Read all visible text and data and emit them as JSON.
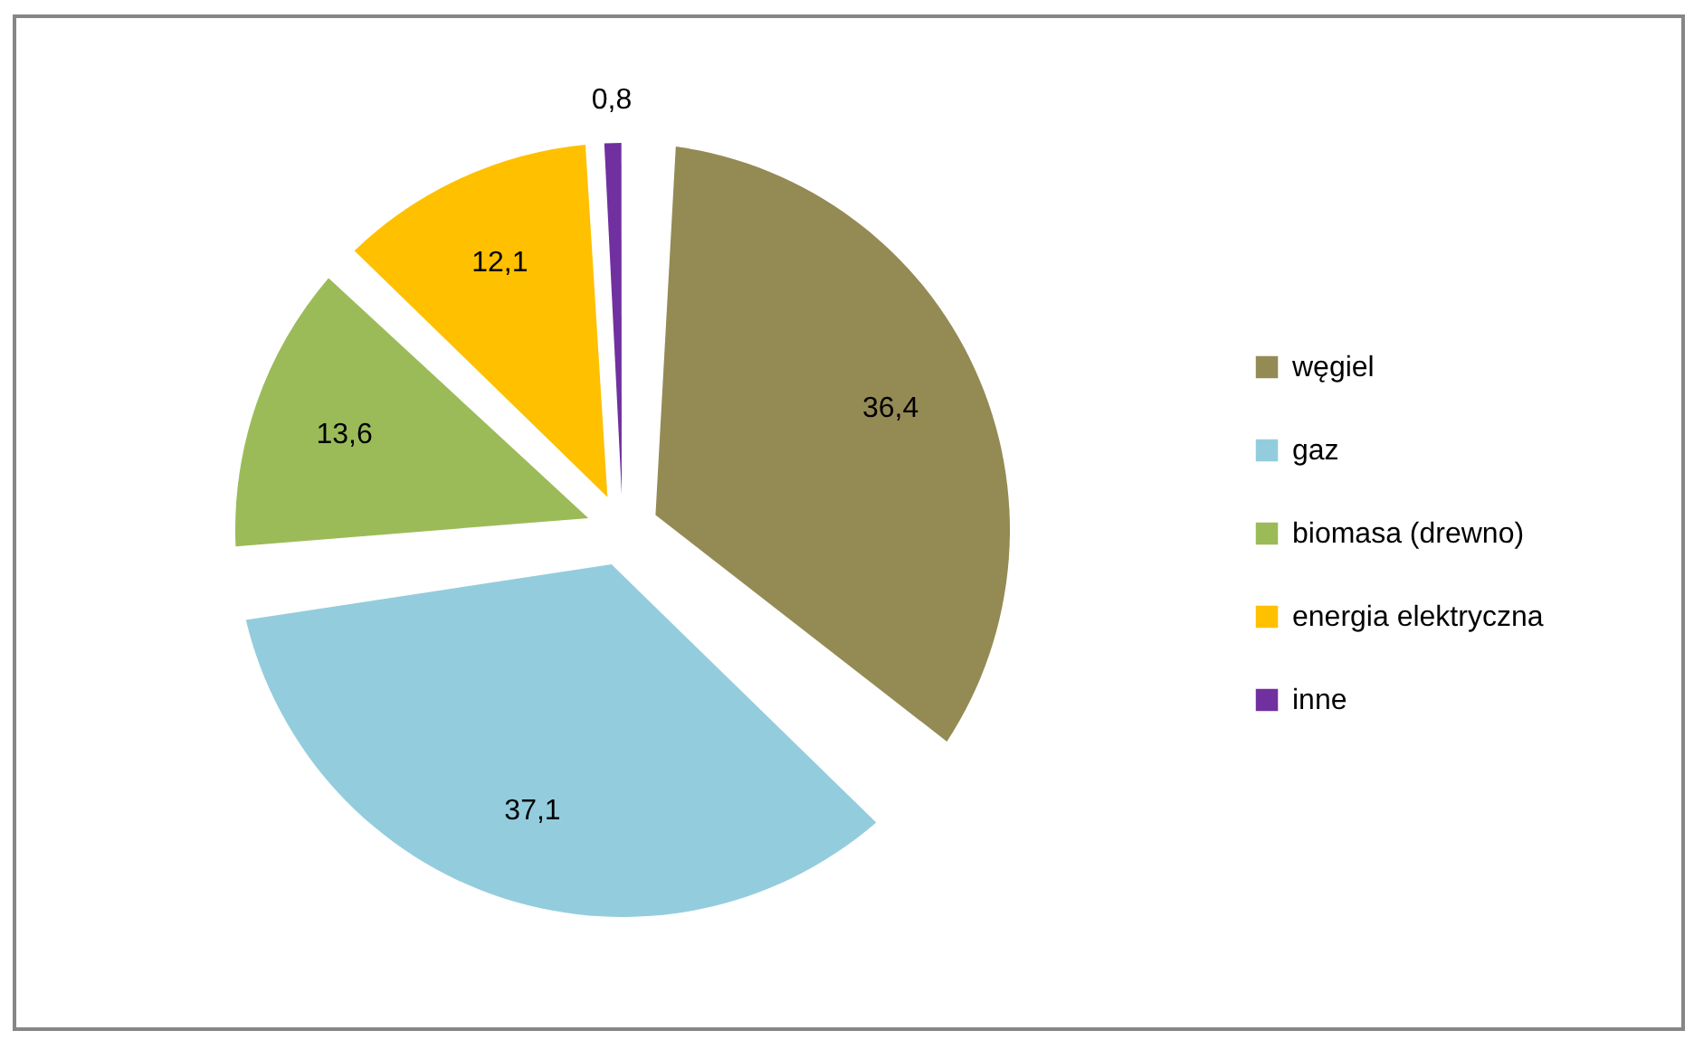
{
  "chart_data": {
    "type": "pie",
    "categories": [
      "węgiel",
      "gaz",
      "biomasa (drewno)",
      "energia elektryczna",
      "inne"
    ],
    "values": [
      36.4,
      37.1,
      13.6,
      12.1,
      0.8
    ],
    "colors": [
      "#948a54",
      "#93cddd",
      "#9bbb59",
      "#ffc000",
      "#7030a0"
    ],
    "value_labels": [
      "36,4",
      "37,1",
      "13,6",
      "12,1",
      "0,8"
    ],
    "legend": "right"
  }
}
